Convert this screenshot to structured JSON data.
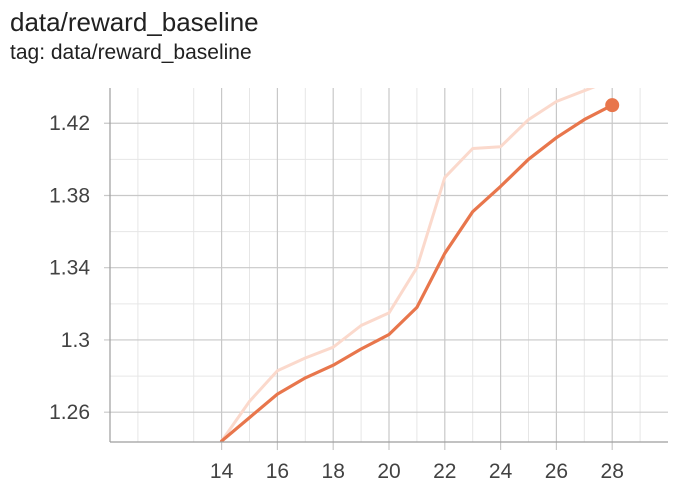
{
  "card": {
    "title": "data/reward_baseline",
    "tag": "tag: data/reward_baseline"
  },
  "colors": {
    "smoothed": "#e8764c",
    "raw": "#fbd9cc",
    "grid_major": "#c8c8c8",
    "grid_minor": "#e6e6e6",
    "axis": "#9e9e9e"
  },
  "chart_data": {
    "type": "line",
    "title": "data/reward_baseline",
    "xlabel": "",
    "ylabel": "",
    "xlim": [
      10,
      30
    ],
    "ylim": [
      1.2435,
      1.4395
    ],
    "x_ticks": [
      14,
      16,
      18,
      20,
      22,
      24,
      26,
      28
    ],
    "y_ticks": [
      1.26,
      1.3,
      1.34,
      1.38,
      1.42
    ],
    "y_tick_labels": [
      "1.26",
      "1.3",
      "1.34",
      "1.38",
      "1.42"
    ],
    "grid": true,
    "series": [
      {
        "role": "raw",
        "x": [
          14,
          15,
          16,
          17,
          18,
          19,
          20,
          21,
          22,
          23,
          24,
          25,
          26,
          27,
          28
        ],
        "y": [
          1.244,
          1.266,
          1.283,
          1.29,
          1.296,
          1.308,
          1.315,
          1.34,
          1.39,
          1.406,
          1.407,
          1.422,
          1.432,
          1.438,
          1.444
        ]
      },
      {
        "role": "smoothed",
        "x": [
          14,
          15,
          16,
          17,
          18,
          19,
          20,
          21,
          22,
          23,
          24,
          25,
          26,
          27,
          28
        ],
        "y": [
          1.244,
          1.257,
          1.27,
          1.279,
          1.286,
          1.295,
          1.303,
          1.318,
          1.348,
          1.371,
          1.385,
          1.4,
          1.412,
          1.422,
          1.43
        ]
      }
    ]
  }
}
